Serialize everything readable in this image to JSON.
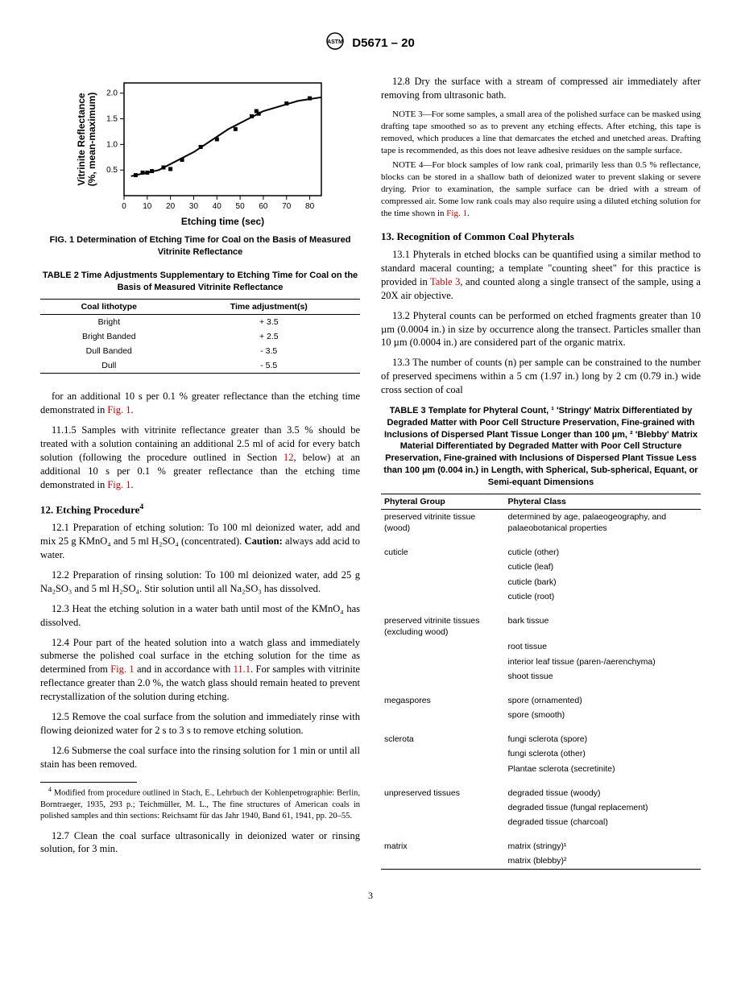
{
  "header": {
    "standard": "D5671 – 20"
  },
  "figure1": {
    "type": "scatter-with-curve",
    "x_label": "Etching time (sec)",
    "y_label": "Vitrinite Reflectance\n(%, mean-maximum)",
    "xlim": [
      0,
      85
    ],
    "ylim": [
      0,
      2.2
    ],
    "xticks": [
      0,
      10,
      20,
      30,
      40,
      50,
      60,
      70,
      80
    ],
    "yticks": [
      0.5,
      1.0,
      1.5,
      2.0
    ],
    "points": [
      {
        "x": 5,
        "y": 0.4
      },
      {
        "x": 8,
        "y": 0.45
      },
      {
        "x": 10,
        "y": 0.45
      },
      {
        "x": 12,
        "y": 0.48
      },
      {
        "x": 17,
        "y": 0.55
      },
      {
        "x": 20,
        "y": 0.52
      },
      {
        "x": 25,
        "y": 0.7
      },
      {
        "x": 33,
        "y": 0.95
      },
      {
        "x": 40,
        "y": 1.1
      },
      {
        "x": 48,
        "y": 1.3
      },
      {
        "x": 55,
        "y": 1.55
      },
      {
        "x": 57,
        "y": 1.65
      },
      {
        "x": 58,
        "y": 1.6
      },
      {
        "x": 70,
        "y": 1.8
      },
      {
        "x": 80,
        "y": 1.9
      }
    ],
    "curve": [
      {
        "x": 3,
        "y": 0.38
      },
      {
        "x": 15,
        "y": 0.5
      },
      {
        "x": 30,
        "y": 0.85
      },
      {
        "x": 45,
        "y": 1.3
      },
      {
        "x": 60,
        "y": 1.65
      },
      {
        "x": 75,
        "y": 1.85
      },
      {
        "x": 85,
        "y": 1.92
      }
    ],
    "marker_color": "#000000",
    "line_color": "#000000",
    "axis_color": "#000000",
    "caption": "FIG. 1  Determination of Etching Time for Coal on the Basis of Measured Vitrinite Reflectance"
  },
  "table2": {
    "title": "TABLE 2 Time Adjustments Supplementary to Etching Time for Coal on the Basis of Measured Vitrinite Reflectance",
    "columns": [
      "Coal lithotype",
      "Time adjustment(s)"
    ],
    "rows": [
      [
        "Bright",
        "+ 3.5"
      ],
      [
        "Bright Banded",
        "+ 2.5"
      ],
      [
        "Dull Banded",
        "- 3.5"
      ],
      [
        "Dull",
        "- 5.5"
      ]
    ]
  },
  "body": {
    "p1": "for an additional 10 s per 0.1 % greater reflectance than the etching time demonstrated in ",
    "p1_link": "Fig. 1",
    "p1_end": ".",
    "p2a": "11.1.5 Samples with vitrinite reflectance greater than 3.5 % should be treated with a solution containing an additional 2.5 ml of acid for every batch solution (following the procedure outlined in Section ",
    "p2_link1": "12",
    "p2b": ", below) at an additional 10 s per 0.1 % greater reflectance than the etching time demonstrated in ",
    "p2_link2": "Fig. 1",
    "p2_end": ".",
    "sec12": "12. Etching Procedure",
    "sec12_sup": "4",
    "p12_1": "12.1 Preparation of etching solution: To 100 ml deionized water, add and mix 25 g KMnO₄ and 5 ml H₂SO₄ (concentrated). ",
    "p12_1b": "Caution:",
    "p12_1c": " always add acid to water.",
    "p12_2": "12.2 Preparation of rinsing solution: To 100 ml deionized water, add 25 g Na₂SO₃ and 5 ml H₂SO₄. Stir solution until all Na₂SO₃ has dissolved.",
    "p12_3": "12.3 Heat the etching solution in a water bath until most of the KMnO₄ has dissolved.",
    "p12_4a": "12.4 Pour part of the heated solution into a watch glass and immediately submerse the polished coal surface in the etching solution for the time as determined from ",
    "p12_4link1": "Fig. 1",
    "p12_4b": " and in accordance with ",
    "p12_4link2": "11.1",
    "p12_4c": ". For samples with vitrinite reflectance greater than 2.0 %, the watch glass should remain heated to prevent recrystallization of the solution during etching.",
    "p12_5": "12.5 Remove the coal surface from the solution and immediately rinse with flowing deionized water for 2 s to 3 s to remove etching solution.",
    "p12_6": "12.6 Submerse the coal surface into the rinsing solution for 1 min or until all stain has been removed.",
    "p12_7": "12.7 Clean the coal surface ultrasonically in deionized water or rinsing solution, for 3 min.",
    "p12_8": "12.8 Dry the surface with a stream of compressed air immediately after removing from ultrasonic bath.",
    "note3": "NOTE 3—For some samples, a small area of the polished surface can be masked using drafting tape smoothed so as to prevent any etching effects. After etching, this tape is removed, which produces a line that demarcates the etched and unetched areas. Drafting tape is recommended, as this does not leave adhesive residues on the sample surface.",
    "note4a": "NOTE 4—For block samples of low rank coal, primarily less than 0.5 % reflectance, blocks can be stored in a shallow bath of deionized water to prevent slaking or severe drying. Prior to examination, the sample surface can be dried with a stream of compressed air. Some low rank coals may also require using a diluted etching solution for the time shown in ",
    "note4link": "Fig. 1",
    "note4b": ".",
    "sec13": "13. Recognition of Common Coal Phyterals",
    "p13_1a": "13.1 Phyterals in etched blocks can be quantified using a similar method to standard maceral counting; a template \"counting sheet\" for this practice is provided in ",
    "p13_1link": "Table 3",
    "p13_1b": ", and counted along a single transect of the sample, using a 20X air objective.",
    "p13_2": "13.2 Phyteral counts can be performed on etched fragments greater than 10 µm (0.0004 in.) in size by occurrence along the transect. Particles smaller than 10 µm (0.0004 in.) are considered part of the organic matrix.",
    "p13_3": "13.3 The number of counts (n) per sample can be constrained to the number of preserved specimens within a 5 cm (1.97 in.) long by 2 cm (0.79 in.) wide cross section of coal"
  },
  "table3": {
    "title": "TABLE 3 Template for Phyteral Count, ¹ 'Stringy' Matrix Differentiated by Degraded Matter with Poor Cell Structure Preservation, Fine-grained with Inclusions of Dispersed Plant Tissue Longer than 100 µm, ² 'Blebby' Matrix Material Differentiated by Degraded Matter with Poor Cell Structure Preservation, Fine-grained with Inclusions of Dispersed Plant Tissue Less than 100 µm (0.004 in.) in Length, with Spherical, Sub-spherical, Equant, or Semi-equant Dimensions",
    "columns": [
      "Phyteral Group",
      "Phyteral Class"
    ],
    "groups": [
      {
        "group": "preserved vitrinite tissue (wood)",
        "classes": [
          "determined by age, palaeogeography, and palaeobotanical properties"
        ],
        "italic": true
      },
      {
        "group": "cuticle",
        "classes": [
          "cuticle (other)",
          "cuticle (leaf)",
          "cuticle (bark)",
          "cuticle (root)"
        ]
      },
      {
        "group": "preserved vitrinite tissues (excluding wood)",
        "classes": [
          "bark tissue",
          "root tissue",
          "interior leaf tissue (paren-/aerenchyma)",
          "shoot tissue"
        ]
      },
      {
        "group": "megaspores",
        "classes": [
          "spore (ornamented)",
          "spore (smooth)"
        ]
      },
      {
        "group": "sclerota",
        "classes": [
          "fungi sclerota (spore)",
          "fungi sclerota (other)",
          "Plantae sclerota (secretinite)"
        ]
      },
      {
        "group": "unpreserved tissues",
        "classes": [
          "degraded tissue (woody)",
          "degraded tissue (fungal replacement)",
          "degraded tissue (charcoal)"
        ]
      },
      {
        "group": "matrix",
        "classes": [
          "matrix (stringy)¹",
          "matrix (blebby)²"
        ]
      }
    ]
  },
  "footnote": {
    "num": "4",
    "text": " Modified from procedure outlined in Stach, E., Lehrbuch der Kohlenpetrographie: Berlin, Borntraeger, 1935, 293 p.; Teichmüller, M. L., The fine structures of American coals in polished samples and thin sections: Reichsamt für das Jahr 1940, Band 61, 1941, pp. 20–55."
  },
  "pagenum": "3"
}
